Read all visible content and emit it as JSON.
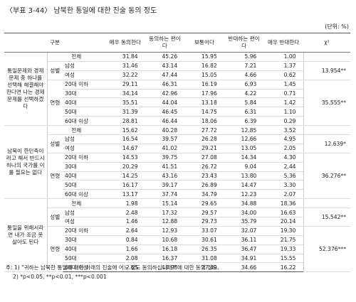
{
  "header": {
    "title": "〈부표 3-44〉 남북한 통일에 대한 진술 동의 정도",
    "unit": "(단위: %)"
  },
  "table": {
    "columns": [
      "구분",
      "매우 동의한다",
      "동의하는 편이다",
      "보통이다",
      "반대하는 편이다",
      "매우 반대한다",
      "χ²"
    ],
    "sections": [
      {
        "label": "통일문제와 경제문제 중 하나를 선택해 해결해야 한다면 나는 경제문제를 선택하겠다",
        "total": {
          "label": "전체",
          "values": [
            31.84,
            45.26,
            15.95,
            5.96,
            1.0
          ]
        },
        "groups": [
          {
            "name": "성별",
            "chi": "13.954**",
            "rows": [
              {
                "label": "남성",
                "values": [
                  31.46,
                  43.14,
                  16.82,
                  7.21,
                  1.37
                ]
              },
              {
                "label": "여성",
                "values": [
                  32.22,
                  47.44,
                  15.05,
                  4.66,
                  0.62
                ]
              }
            ]
          },
          {
            "name": "연령",
            "chi": "35.555**",
            "rows": [
              {
                "label": "20대 이하",
                "values": [
                  29.11,
                  46.31,
                  16.19,
                  6.93,
                  1.45
                ]
              },
              {
                "label": "30대",
                "values": [
                  34.14,
                  42.96,
                  17.96,
                  4.22,
                  0.71
                ]
              },
              {
                "label": "40대",
                "values": [
                  35.51,
                  44.04,
                  13.18,
                  5.84,
                  1.42
                ]
              },
              {
                "label": "50대",
                "values": [
                  31.39,
                  46.45,
                  14.75,
                  6.31,
                  1.1
                ]
              },
              {
                "label": "60대 이상",
                "values": [
                  28.81,
                  46.44,
                  18.06,
                  6.39,
                  0.29
                ]
              }
            ]
          }
        ]
      },
      {
        "label": "남북이 한민족이라고 해서 반드시 하나의 국가를 이룰 필요는 없다",
        "total": {
          "label": "전체",
          "values": [
            15.62,
            40.28,
            27.72,
            12.85,
            3.52
          ]
        },
        "groups": [
          {
            "name": "성별",
            "chi": "12.639*",
            "rows": [
              {
                "label": "남성",
                "values": [
                  16.54,
                  39.57,
                  26.28,
                  12.66,
                  4.95
                ]
              },
              {
                "label": "여성",
                "values": [
                  14.67,
                  41.02,
                  29.21,
                  13.05,
                  2.05
                ]
              }
            ]
          },
          {
            "name": "연령",
            "chi": "36.276**",
            "rows": [
              {
                "label": "20대 이하",
                "values": [
                  14.53,
                  39.75,
                  27.08,
                  14.34,
                  4.3
                ]
              },
              {
                "label": "30대",
                "values": [
                  20.29,
                  41.51,
                  26.72,
                  9.04,
                  2.44
                ]
              },
              {
                "label": "40대",
                "values": [
                  14.25,
                  43.16,
                  23.43,
                  13.8,
                  5.36
                ]
              },
              {
                "label": "50대",
                "values": [
                  16.17,
                  39.17,
                  26.89,
                  14.47,
                  3.3
                ]
              },
              {
                "label": "60대 이상",
                "values": [
                  13.17,
                  37.74,
                  34.79,
                  12.23,
                  2.07
                ]
              }
            ]
          }
        ]
      },
      {
        "label": "통일을 위해서라면 내가 조금 못살아도 된다",
        "total": {
          "label": "전체",
          "values": [
            1.98,
            15.14,
            29.65,
            34.88,
            18.36
          ]
        },
        "groups": [
          {
            "name": "성별",
            "chi": "15.542**",
            "rows": [
              {
                "label": "남성",
                "values": [
                  2.48,
                  17.32,
                  29.57,
                  34.0,
                  16.63
                ]
              },
              {
                "label": "여성",
                "values": [
                  1.46,
                  12.88,
                  29.73,
                  35.79,
                  20.14
                ]
              }
            ]
          },
          {
            "name": "연령",
            "chi": "52.376***",
            "rows": [
              {
                "label": "20대 이하",
                "values": [
                  2.64,
                  12.93,
                  33.07,
                  32.07,
                  19.3
                ]
              },
              {
                "label": "30대",
                "values": [
                  0.84,
                  10.68,
                  30.61,
                  36.11,
                  21.75
                ]
              },
              {
                "label": "40대",
                "values": [
                  1.66,
                  16.18,
                  26.35,
                  36.47,
                  19.33
                ]
              },
              {
                "label": "50대",
                "values": [
                  2.08,
                  16.37,
                  31.08,
                  34.91,
                  15.55
                ]
              },
              {
                "label": "60대 이상",
                "values": [
                  2.65,
                  18.98,
                  27.49,
                  34.66,
                  16.22
                ]
              }
            ]
          }
        ]
      }
    ]
  },
  "notes": [
    "주: 1) \"귀하는 남북한 통일에 대한 아래의 진술에 어느 정도 동의하십니까?\"에 대한 동의 정도.",
    "2) *p<0.05, **p<0.01, ***p<0.001"
  ]
}
